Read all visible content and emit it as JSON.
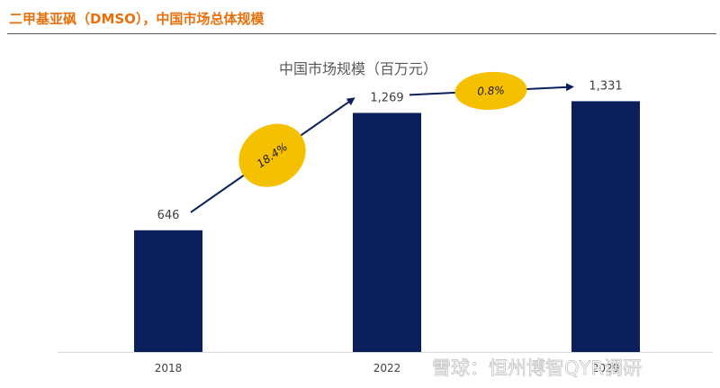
{
  "header": {
    "title": "二甲基亚砜（DMSO），中国市场总体规模"
  },
  "chart_data": {
    "type": "bar",
    "title": "中国市场规模（百万元）",
    "categories": [
      "2018",
      "2022",
      "2029"
    ],
    "values": [
      646,
      1269,
      1331
    ],
    "value_labels": [
      "646",
      "1,269",
      "1,331"
    ],
    "ylim": [
      0,
      1400
    ],
    "grid": false,
    "bar_color": "#0A1F5C",
    "growth_annotations": [
      {
        "from": "2018",
        "to": "2022",
        "label": "18.4%"
      },
      {
        "from": "2022",
        "to": "2029",
        "label": "0.8%"
      }
    ],
    "annotation_color": "#F5C000",
    "arrow_color": "#0A1F5C"
  },
  "watermark": {
    "text": "雪球：恒州博智QYR调研"
  }
}
